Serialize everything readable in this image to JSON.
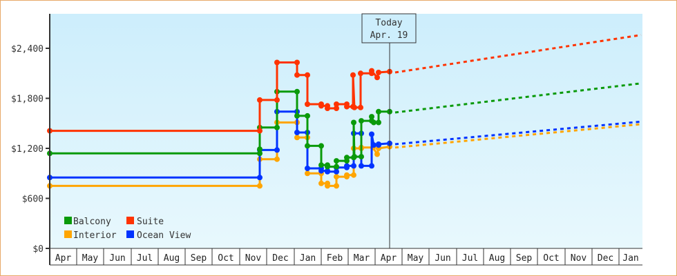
{
  "chart_data": {
    "type": "line",
    "title": "",
    "xlabel": "",
    "ylabel": "",
    "ylim": [
      0,
      2800
    ],
    "y_ticks": [
      {
        "value": 0,
        "label": "$0"
      },
      {
        "value": 600,
        "label": "$600"
      },
      {
        "value": 1200,
        "label": "$1,200"
      },
      {
        "value": 1800,
        "label": "$1,800"
      },
      {
        "value": 2400,
        "label": "$2,400"
      }
    ],
    "x_months": [
      "Apr",
      "May",
      "Jun",
      "Jul",
      "Aug",
      "Sep",
      "Oct",
      "Nov",
      "Dec",
      "Jan",
      "Feb",
      "Mar",
      "Apr",
      "May",
      "Jun",
      "Jul",
      "Aug",
      "Sep",
      "Oct",
      "Nov",
      "Dec",
      "Jan"
    ],
    "grid": false,
    "legend_position": "lower-left",
    "today_marker": {
      "line1": "Today",
      "line2": "Apr. 19"
    },
    "series": [
      {
        "name": "Balcony",
        "color": "#0a9a0a",
        "points": [
          [
            72,
            1140
          ],
          [
            376,
            1140
          ],
          [
            376,
            1190
          ],
          [
            376,
            1450
          ],
          [
            401,
            1450
          ],
          [
            401,
            1880
          ],
          [
            430,
            1880
          ],
          [
            430,
            1590
          ],
          [
            445,
            1590
          ],
          [
            445,
            1230
          ],
          [
            465,
            1230
          ],
          [
            465,
            1000
          ],
          [
            474,
            1000
          ],
          [
            474,
            980
          ],
          [
            487,
            980
          ],
          [
            487,
            1050
          ],
          [
            502,
            1050
          ],
          [
            502,
            1090
          ],
          [
            512,
            1090
          ],
          [
            512,
            1510
          ],
          [
            513,
            1100
          ],
          [
            523,
            1100
          ],
          [
            523,
            1530
          ],
          [
            538,
            1530
          ],
          [
            538,
            1580
          ],
          [
            541,
            1510
          ],
          [
            548,
            1510
          ],
          [
            548,
            1640
          ],
          [
            564,
            1640
          ]
        ],
        "projection": [
          [
            572,
            1630
          ],
          [
            928,
            1980
          ]
        ]
      },
      {
        "name": "Suite",
        "color": "#ff3300",
        "points": [
          [
            72,
            1410
          ],
          [
            376,
            1410
          ],
          [
            376,
            1780
          ],
          [
            401,
            1780
          ],
          [
            401,
            2230
          ],
          [
            430,
            2230
          ],
          [
            430,
            2080
          ],
          [
            445,
            2080
          ],
          [
            445,
            1730
          ],
          [
            465,
            1730
          ],
          [
            465,
            1710
          ],
          [
            474,
            1710
          ],
          [
            474,
            1680
          ],
          [
            487,
            1680
          ],
          [
            487,
            1730
          ],
          [
            502,
            1730
          ],
          [
            502,
            1700
          ],
          [
            511,
            1700
          ],
          [
            511,
            2080
          ],
          [
            513,
            1690
          ],
          [
            522,
            1690
          ],
          [
            522,
            2100
          ],
          [
            538,
            2100
          ],
          [
            538,
            2130
          ],
          [
            546,
            2050
          ],
          [
            548,
            2110
          ],
          [
            564,
            2120
          ]
        ],
        "projection": [
          [
            572,
            2110
          ],
          [
            928,
            2560
          ]
        ]
      },
      {
        "name": "Interior",
        "color": "#ffa500",
        "points": [
          [
            72,
            750
          ],
          [
            376,
            750
          ],
          [
            376,
            1070
          ],
          [
            401,
            1070
          ],
          [
            401,
            1510
          ],
          [
            430,
            1510
          ],
          [
            430,
            1330
          ],
          [
            445,
            1330
          ],
          [
            445,
            900
          ],
          [
            465,
            900
          ],
          [
            465,
            780
          ],
          [
            474,
            780
          ],
          [
            474,
            750
          ],
          [
            487,
            750
          ],
          [
            487,
            860
          ],
          [
            502,
            860
          ],
          [
            502,
            880
          ],
          [
            512,
            880
          ],
          [
            512,
            1200
          ],
          [
            523,
            1200
          ],
          [
            523,
            1210
          ],
          [
            540,
            1210
          ],
          [
            546,
            1130
          ],
          [
            548,
            1200
          ],
          [
            564,
            1220
          ]
        ],
        "projection": [
          [
            572,
            1210
          ],
          [
            928,
            1490
          ]
        ]
      },
      {
        "name": "Ocean View",
        "color": "#0033ff",
        "points": [
          [
            72,
            850
          ],
          [
            376,
            850
          ],
          [
            376,
            1180
          ],
          [
            401,
            1180
          ],
          [
            401,
            1640
          ],
          [
            430,
            1640
          ],
          [
            430,
            1390
          ],
          [
            445,
            1390
          ],
          [
            445,
            960
          ],
          [
            465,
            960
          ],
          [
            465,
            930
          ],
          [
            474,
            930
          ],
          [
            474,
            920
          ],
          [
            487,
            920
          ],
          [
            487,
            970
          ],
          [
            502,
            970
          ],
          [
            502,
            990
          ],
          [
            512,
            990
          ],
          [
            512,
            1380
          ],
          [
            523,
            1380
          ],
          [
            523,
            990
          ],
          [
            538,
            990
          ],
          [
            538,
            1370
          ],
          [
            541,
            1240
          ],
          [
            548,
            1240
          ],
          [
            548,
            1250
          ],
          [
            564,
            1260
          ]
        ],
        "projection": [
          [
            572,
            1250
          ],
          [
            928,
            1520
          ]
        ]
      }
    ]
  },
  "legend": {
    "items": [
      {
        "label": "Balcony",
        "color": "#0a9a0a"
      },
      {
        "label": "Suite",
        "color": "#ff3300"
      },
      {
        "label": "Interior",
        "color": "#ffa500"
      },
      {
        "label": "Ocean View",
        "color": "#0033ff"
      }
    ]
  },
  "today": {
    "line1": "Today",
    "line2": "Apr. 19"
  }
}
